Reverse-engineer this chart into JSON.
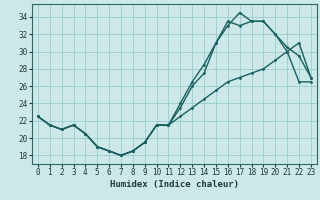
{
  "xlabel": "Humidex (Indice chaleur)",
  "xlim": [
    -0.5,
    23.5
  ],
  "ylim": [
    17,
    35.5
  ],
  "yticks": [
    18,
    20,
    22,
    24,
    26,
    28,
    30,
    32,
    34
  ],
  "xticks": [
    0,
    1,
    2,
    3,
    4,
    5,
    6,
    7,
    8,
    9,
    10,
    11,
    12,
    13,
    14,
    15,
    16,
    17,
    18,
    19,
    20,
    21,
    22,
    23
  ],
  "background_color": "#cce8e8",
  "grid_color": "#99cccc",
  "line_color": "#1a6060",
  "line1_x": [
    0,
    1,
    2,
    3,
    4,
    5,
    6,
    7,
    8,
    9,
    10,
    11,
    12,
    13,
    14,
    15,
    16,
    17,
    18,
    19,
    20,
    21,
    22,
    23
  ],
  "line1_y": [
    22.5,
    21.5,
    21.0,
    21.5,
    20.5,
    19.0,
    18.5,
    18.0,
    18.5,
    19.5,
    21.5,
    21.5,
    24.0,
    26.5,
    28.5,
    31.0,
    33.0,
    34.5,
    33.5,
    33.5,
    32.0,
    30.5,
    29.5,
    27.0
  ],
  "line2_x": [
    0,
    1,
    2,
    3,
    4,
    5,
    6,
    7,
    8,
    9,
    10,
    11,
    12,
    13,
    14,
    15,
    16,
    17,
    18,
    19,
    20,
    21,
    22,
    23
  ],
  "line2_y": [
    22.5,
    21.5,
    21.0,
    21.5,
    20.5,
    19.0,
    18.5,
    18.0,
    18.5,
    19.5,
    21.5,
    21.5,
    23.5,
    26.0,
    27.5,
    31.0,
    33.5,
    33.0,
    33.5,
    33.5,
    32.0,
    30.0,
    26.5,
    26.5
  ],
  "line3_x": [
    0,
    1,
    2,
    3,
    4,
    5,
    6,
    7,
    8,
    9,
    10,
    11,
    12,
    13,
    14,
    15,
    16,
    17,
    18,
    19,
    20,
    21,
    22,
    23
  ],
  "line3_y": [
    22.5,
    21.5,
    21.0,
    21.5,
    20.5,
    19.0,
    18.5,
    18.0,
    18.5,
    19.5,
    21.5,
    21.5,
    22.5,
    23.5,
    24.5,
    25.5,
    26.5,
    27.0,
    27.5,
    28.0,
    29.0,
    30.0,
    31.0,
    27.0
  ]
}
